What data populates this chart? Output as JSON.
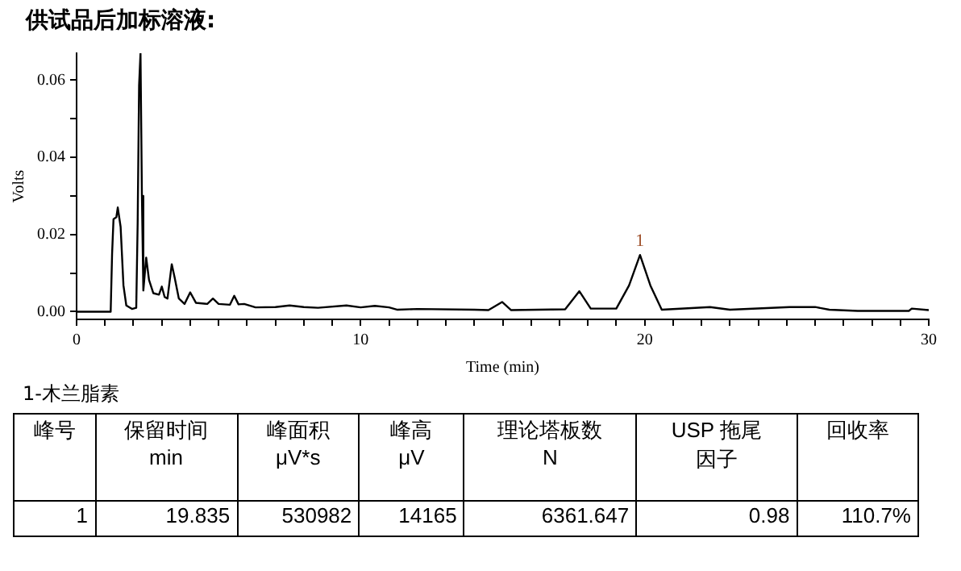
{
  "chart_data": {
    "type": "line",
    "title": "供试品后加标溶液:",
    "xlabel": "Time (min)",
    "ylabel": "Volts",
    "xlim": [
      0,
      30
    ],
    "ylim": [
      -0.002,
      0.067
    ],
    "xticks": [
      {
        "value": 0,
        "label": "0"
      },
      {
        "value": 1,
        "label": null
      },
      {
        "value": 2,
        "label": null
      },
      {
        "value": 3,
        "label": null
      },
      {
        "value": 4,
        "label": null
      },
      {
        "value": 5,
        "label": null
      },
      {
        "value": 6,
        "label": null
      },
      {
        "value": 7,
        "label": null
      },
      {
        "value": 8,
        "label": null
      },
      {
        "value": 9,
        "label": null
      },
      {
        "value": 10,
        "label": "10"
      },
      {
        "value": 11,
        "label": null
      },
      {
        "value": 12,
        "label": null
      },
      {
        "value": 13,
        "label": null
      },
      {
        "value": 14,
        "label": null
      },
      {
        "value": 15,
        "label": null
      },
      {
        "value": 16,
        "label": null
      },
      {
        "value": 17,
        "label": null
      },
      {
        "value": 18,
        "label": null
      },
      {
        "value": 19,
        "label": null
      },
      {
        "value": 20,
        "label": "20"
      },
      {
        "value": 21,
        "label": null
      },
      {
        "value": 22,
        "label": null
      },
      {
        "value": 23,
        "label": null
      },
      {
        "value": 24,
        "label": null
      },
      {
        "value": 25,
        "label": null
      },
      {
        "value": 26,
        "label": null
      },
      {
        "value": 27,
        "label": null
      },
      {
        "value": 28,
        "label": null
      },
      {
        "value": 29,
        "label": null
      },
      {
        "value": 30,
        "label": "30"
      }
    ],
    "yticks": [
      {
        "value": 0,
        "label": "0.00"
      },
      {
        "value": 0.01,
        "label": null
      },
      {
        "value": 0.02,
        "label": "0.02"
      },
      {
        "value": 0.03,
        "label": null
      },
      {
        "value": 0.04,
        "label": "0.04"
      },
      {
        "value": 0.05,
        "label": null
      },
      {
        "value": 0.06,
        "label": "0.06"
      }
    ],
    "grid": false,
    "legend": false,
    "marker": "none",
    "line_style": "solid",
    "series": [
      {
        "color": "#000000",
        "x": [
          0,
          1.2,
          1.25,
          1.3,
          1.4,
          1.45,
          1.55,
          1.65,
          1.75,
          1.95,
          2.1,
          2.15,
          2.2,
          2.25,
          2.3,
          2.35,
          2.45,
          2.55,
          2.7,
          2.9,
          3.0,
          3.1,
          3.2,
          3.35,
          3.45,
          3.6,
          3.8,
          4.0,
          4.2,
          4.6,
          4.8,
          5.0,
          5.4,
          5.55,
          5.7,
          5.9,
          6.3,
          7.0,
          7.5,
          8.0,
          8.5,
          9.5,
          10.0,
          10.5,
          11.0,
          11.3,
          12.0,
          14.0,
          14.5,
          14.98,
          15.3,
          17.2,
          17.7,
          18.1,
          19.0,
          19.45,
          19.835,
          20.2,
          20.6,
          22.3,
          23.0,
          25.1,
          26.0,
          26.5,
          27.5,
          29.3,
          29.4,
          30
        ],
        "values": [
          0,
          0,
          0.015,
          0.024,
          0.0245,
          0.027,
          0.022,
          0.0068,
          0.0016,
          0.0007,
          0.001,
          0.023,
          0.0586,
          0.067,
          0.03,
          0.0055,
          0.014,
          0.0082,
          0.0048,
          0.0044,
          0.0065,
          0.0038,
          0.0034,
          0.0123,
          0.0089,
          0.0034,
          0.002,
          0.005,
          0.0023,
          0.002,
          0.0034,
          0.002,
          0.0018,
          0.0041,
          0.0019,
          0.002,
          0.0011,
          0.0012,
          0.0016,
          0.0012,
          0.001,
          0.0016,
          0.0011,
          0.0015,
          0.0011,
          0.0005,
          0.0007,
          0.0005,
          0.0004,
          0.0025,
          0.0004,
          0.0006,
          0.0053,
          0.0008,
          0.0008,
          0.0068,
          0.0147,
          0.0068,
          0.0005,
          0.0012,
          0.0005,
          0.0012,
          0.0012,
          0.0005,
          0.0002,
          0.0002,
          0.0008,
          0.0004
        ]
      }
    ],
    "annotations": [
      {
        "text": "1",
        "x": 19.835,
        "y": 0.0147
      },
      "1-木兰脂素",
      "峰号",
      "保留时间\nmin",
      "峰面积\nμV*s",
      "峰高\nμV",
      "理论塔板数\nN",
      "USP 拖尾因子",
      "回收率",
      "1",
      "19.835",
      "530982",
      "14165",
      "6361.647",
      "0.98",
      "110.7%"
    ]
  }
}
